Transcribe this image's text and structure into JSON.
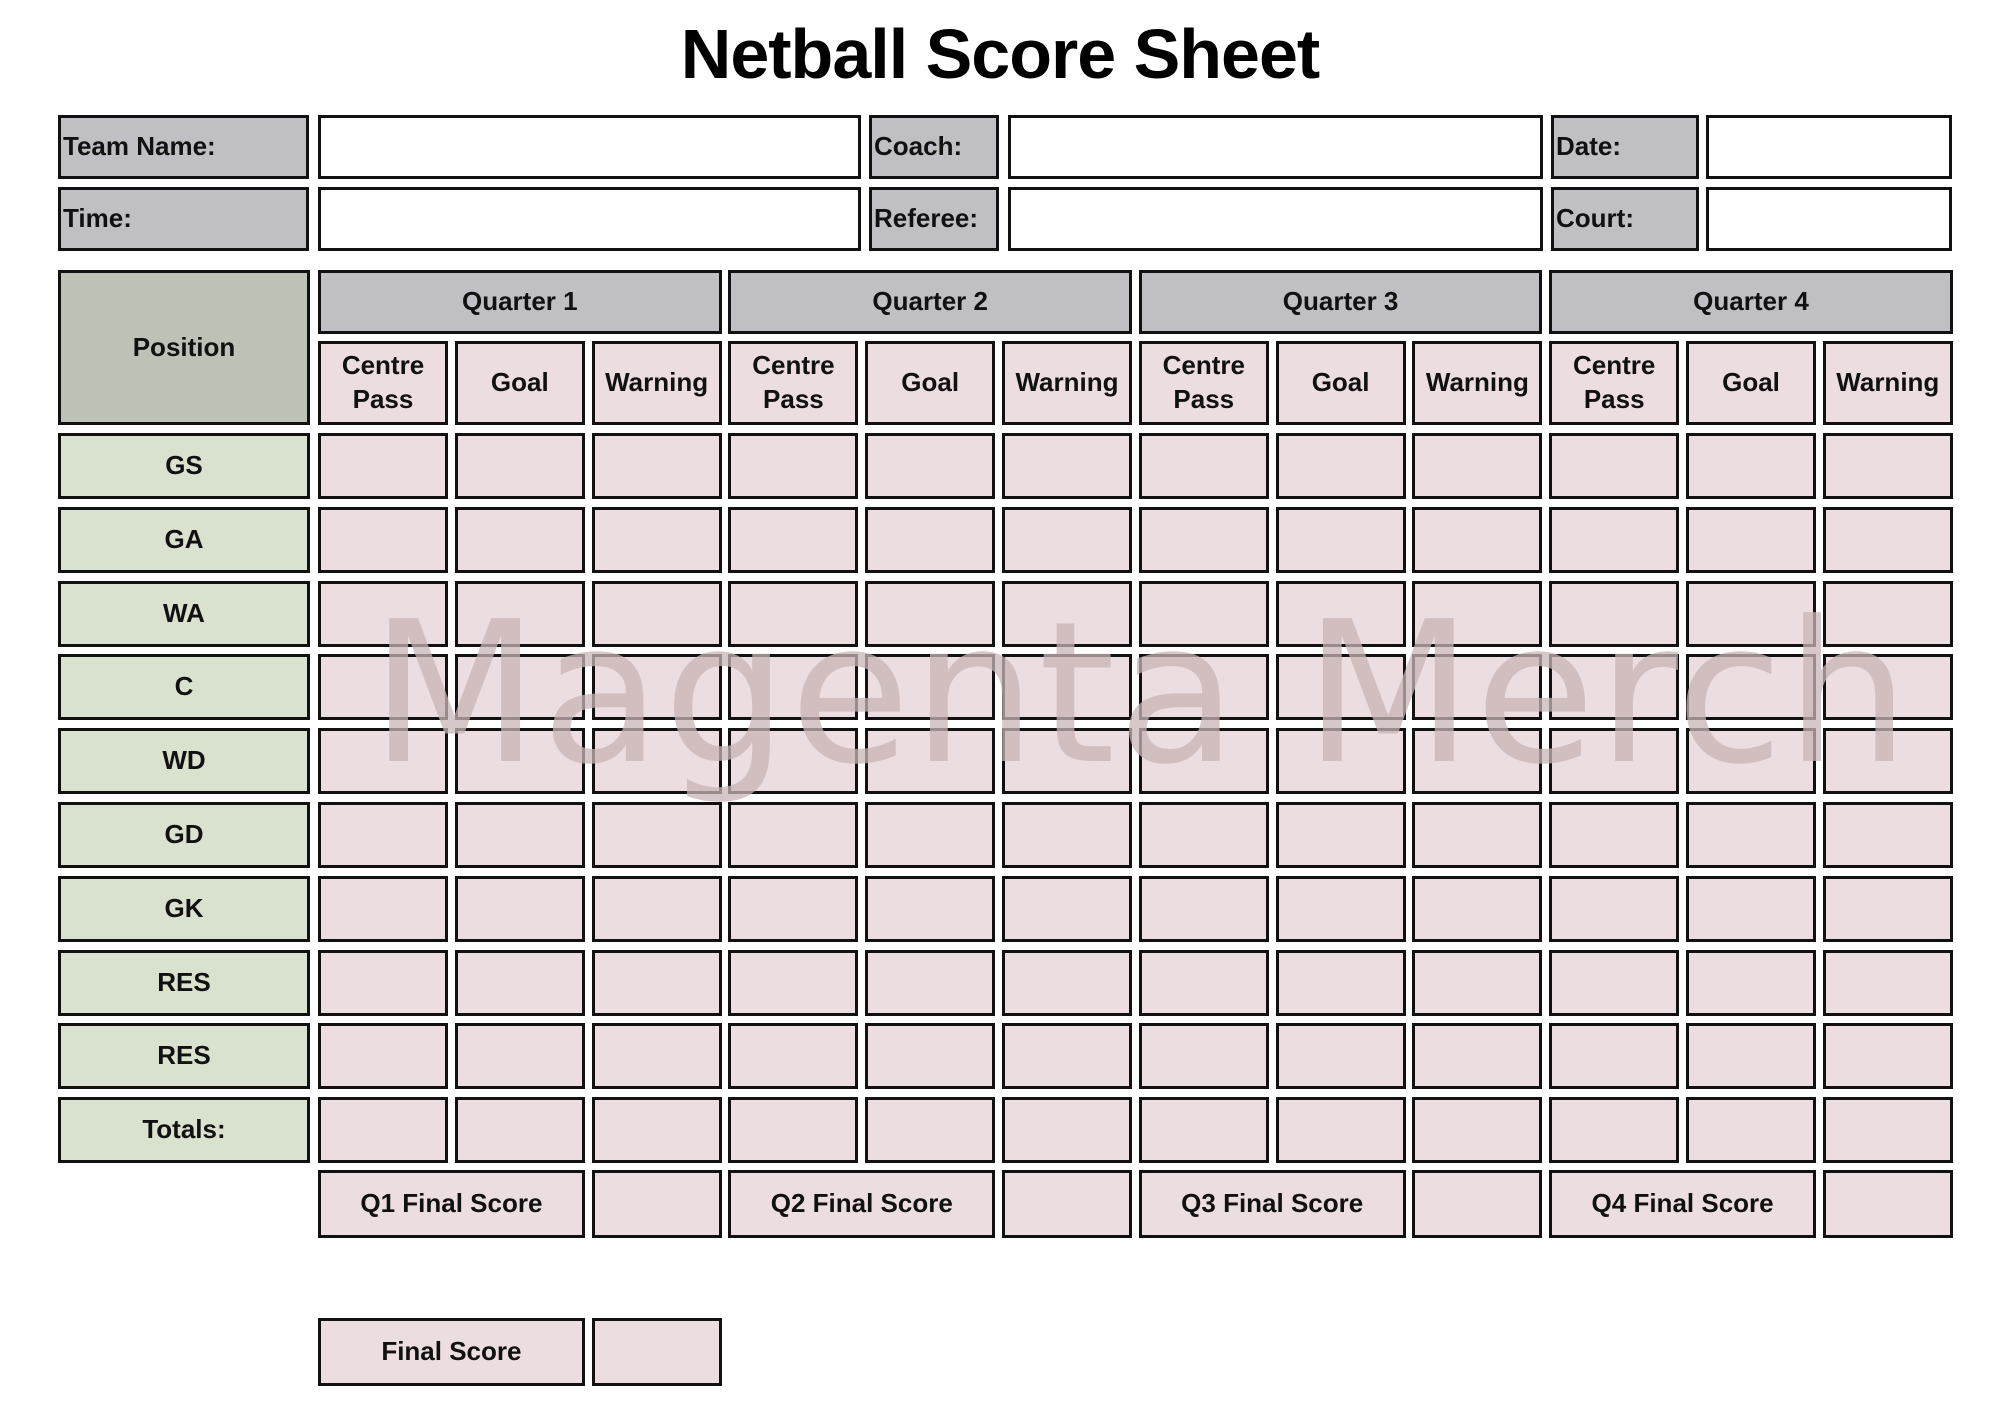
{
  "title": "Netball Score Sheet",
  "info": {
    "team_name_label": "Team Name:",
    "coach_label": "Coach:",
    "date_label": "Date:",
    "time_label": "Time:",
    "referee_label": "Referee:",
    "court_label": "Court:",
    "team_name_value": "",
    "coach_value": "",
    "date_value": "",
    "time_value": "",
    "referee_value": "",
    "court_value": ""
  },
  "grid": {
    "position_header": "Position",
    "quarters": [
      "Quarter 1",
      "Quarter 2",
      "Quarter 3",
      "Quarter 4"
    ],
    "sub_columns": [
      "Centre Pass",
      "Goal",
      "Warning"
    ],
    "positions": [
      "GS",
      "GA",
      "WA",
      "C",
      "WD",
      "GD",
      "GK",
      "RES",
      "RES",
      "Totals:"
    ],
    "quarter_final_scores": [
      "Q1 Final Score",
      "Q2 Final Score",
      "Q3 Final Score",
      "Q4 Final Score"
    ],
    "final_score_label": "Final Score"
  },
  "watermark": "Magenta Merch",
  "colors": {
    "label_grey": "#c0bfc4",
    "position_header": "#bcc3b6",
    "position_cell": "#d8e2cf",
    "score_cell": "#ebdde0"
  }
}
